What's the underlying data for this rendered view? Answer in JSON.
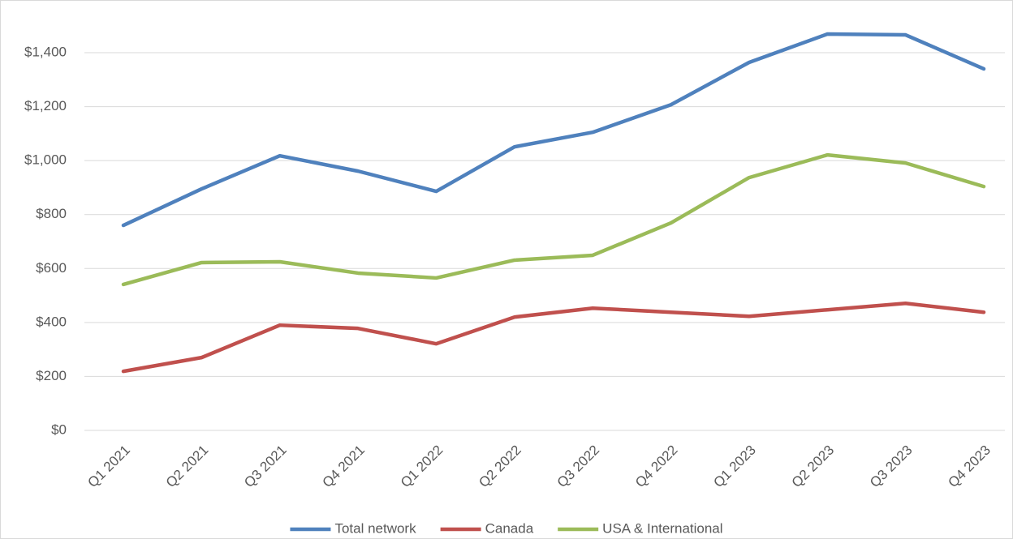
{
  "chart_data": {
    "type": "line",
    "categories": [
      "Q1 2021",
      "Q2 2021",
      "Q3 2021",
      "Q4 2021",
      "Q1 2022",
      "Q2 2022",
      "Q3 2022",
      "Q4 2022",
      "Q1 2023",
      "Q2 2023",
      "Q3 2023",
      "Q4 2023"
    ],
    "series": [
      {
        "name": "Total network",
        "color": "#4f81bd",
        "values": [
          760,
          895,
          1018,
          961,
          886,
          1051,
          1105,
          1207,
          1364,
          1469,
          1466,
          1340
        ]
      },
      {
        "name": "Canada",
        "color": "#c0504d",
        "values": [
          219,
          270,
          390,
          378,
          321,
          420,
          453,
          438,
          423,
          447,
          471,
          438
        ]
      },
      {
        "name": "USA & International",
        "color": "#9bbb59",
        "values": [
          541,
          622,
          625,
          583,
          565,
          631,
          649,
          769,
          937,
          1021,
          991,
          904
        ]
      }
    ],
    "ylim": [
      0,
      1400
    ],
    "yticks": [
      {
        "value": 0,
        "label": "$0"
      },
      {
        "value": 200,
        "label": "$200"
      },
      {
        "value": 400,
        "label": "$400"
      },
      {
        "value": 600,
        "label": "$600"
      },
      {
        "value": 800,
        "label": "$800"
      },
      {
        "value": 1000,
        "label": "$1,000"
      },
      {
        "value": 1200,
        "label": "$1,200"
      },
      {
        "value": 1400,
        "label": "$1,400"
      }
    ],
    "grid": true,
    "legend": "bottom"
  }
}
